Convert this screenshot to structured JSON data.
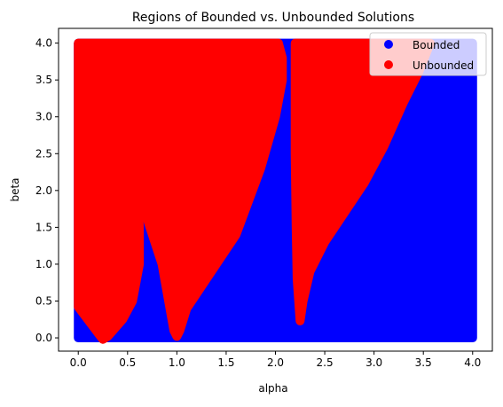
{
  "chart_data": {
    "type": "scatter",
    "title": "Regions of Bounded vs. Unbounded Solutions",
    "xlabel": "alpha",
    "ylabel": "beta",
    "xlim": [
      -0.2,
      4.2
    ],
    "ylim": [
      -0.18,
      4.2
    ],
    "xticks": [
      "0.0",
      "0.5",
      "1.0",
      "1.5",
      "2.0",
      "2.5",
      "3.0",
      "3.5",
      "4.0"
    ],
    "yticks": [
      "0.0",
      "0.5",
      "1.0",
      "1.5",
      "2.0",
      "2.5",
      "3.0",
      "3.5",
      "4.0"
    ],
    "grid": false,
    "legend_position": "top-right",
    "domain": {
      "alpha": [
        0,
        4
      ],
      "beta": [
        0,
        4
      ]
    },
    "series": [
      {
        "name": "Bounded",
        "color": "#0000ff",
        "region_description_points": [
          [
            0,
            0
          ],
          [
            4,
            0
          ],
          [
            4,
            4
          ],
          [
            0,
            4
          ]
        ]
      },
      {
        "name": "Unbounded",
        "color": "#ff0000",
        "regions": [
          [
            [
              0,
              4
            ],
            [
              0,
              0.42
            ],
            [
              0.22,
              0.03
            ],
            [
              0.25,
              -0.02
            ],
            [
              0.3,
              0.02
            ],
            [
              0.45,
              0.25
            ],
            [
              0.55,
              0.5
            ],
            [
              0.62,
              1.0
            ],
            [
              0.62,
              1.5
            ],
            [
              0.6,
              1.9
            ],
            [
              0.58,
              2.1
            ],
            [
              0.85,
              1.0
            ],
            [
              0.97,
              0.1
            ],
            [
              1.0,
              0.02
            ],
            [
              1.03,
              0.1
            ],
            [
              1.1,
              0.4
            ],
            [
              1.3,
              0.8
            ],
            [
              1.6,
              1.4
            ],
            [
              1.85,
              2.3
            ],
            [
              2.0,
              3.0
            ],
            [
              2.07,
              3.5
            ],
            [
              2.07,
              3.8
            ],
            [
              2.03,
              4
            ]
          ],
          [
            [
              2.2,
              4
            ],
            [
              2.2,
              2.5
            ],
            [
              2.21,
              1.5
            ],
            [
              2.22,
              0.8
            ],
            [
              2.25,
              0.23
            ],
            [
              2.28,
              0.5
            ],
            [
              2.35,
              0.9
            ],
            [
              2.5,
              1.3
            ],
            [
              2.7,
              1.7
            ],
            [
              2.9,
              2.1
            ],
            [
              3.1,
              2.6
            ],
            [
              3.3,
              3.2
            ],
            [
              3.45,
              3.6
            ],
            [
              3.57,
              4
            ]
          ]
        ]
      }
    ]
  }
}
